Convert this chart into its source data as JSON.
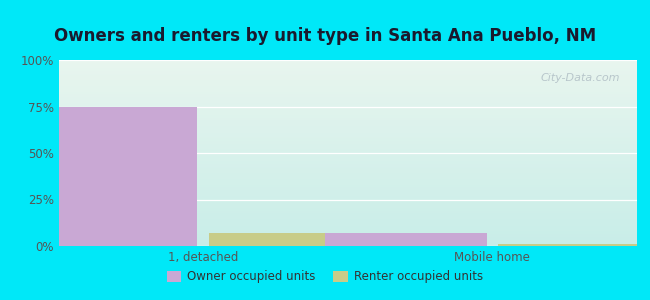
{
  "title": "Owners and renters by unit type in Santa Ana Pueblo, NM",
  "categories": [
    "1, detached",
    "Mobile home"
  ],
  "owner_values": [
    75,
    7
  ],
  "renter_values": [
    7,
    1
  ],
  "owner_color": "#c9a8d4",
  "renter_color": "#c8cc88",
  "ylim": [
    0,
    100
  ],
  "yticks": [
    0,
    25,
    50,
    75,
    100
  ],
  "ytick_labels": [
    "0%",
    "25%",
    "50%",
    "75%",
    "100%"
  ],
  "bg_top_color": "#e8f5ee",
  "bg_bottom_color": "#c8ede8",
  "outer_bg": "#00e8f8",
  "title_fontsize": 12,
  "legend_labels": [
    "Owner occupied units",
    "Renter occupied units"
  ],
  "bar_width": 0.28,
  "watermark": "City-Data.com"
}
